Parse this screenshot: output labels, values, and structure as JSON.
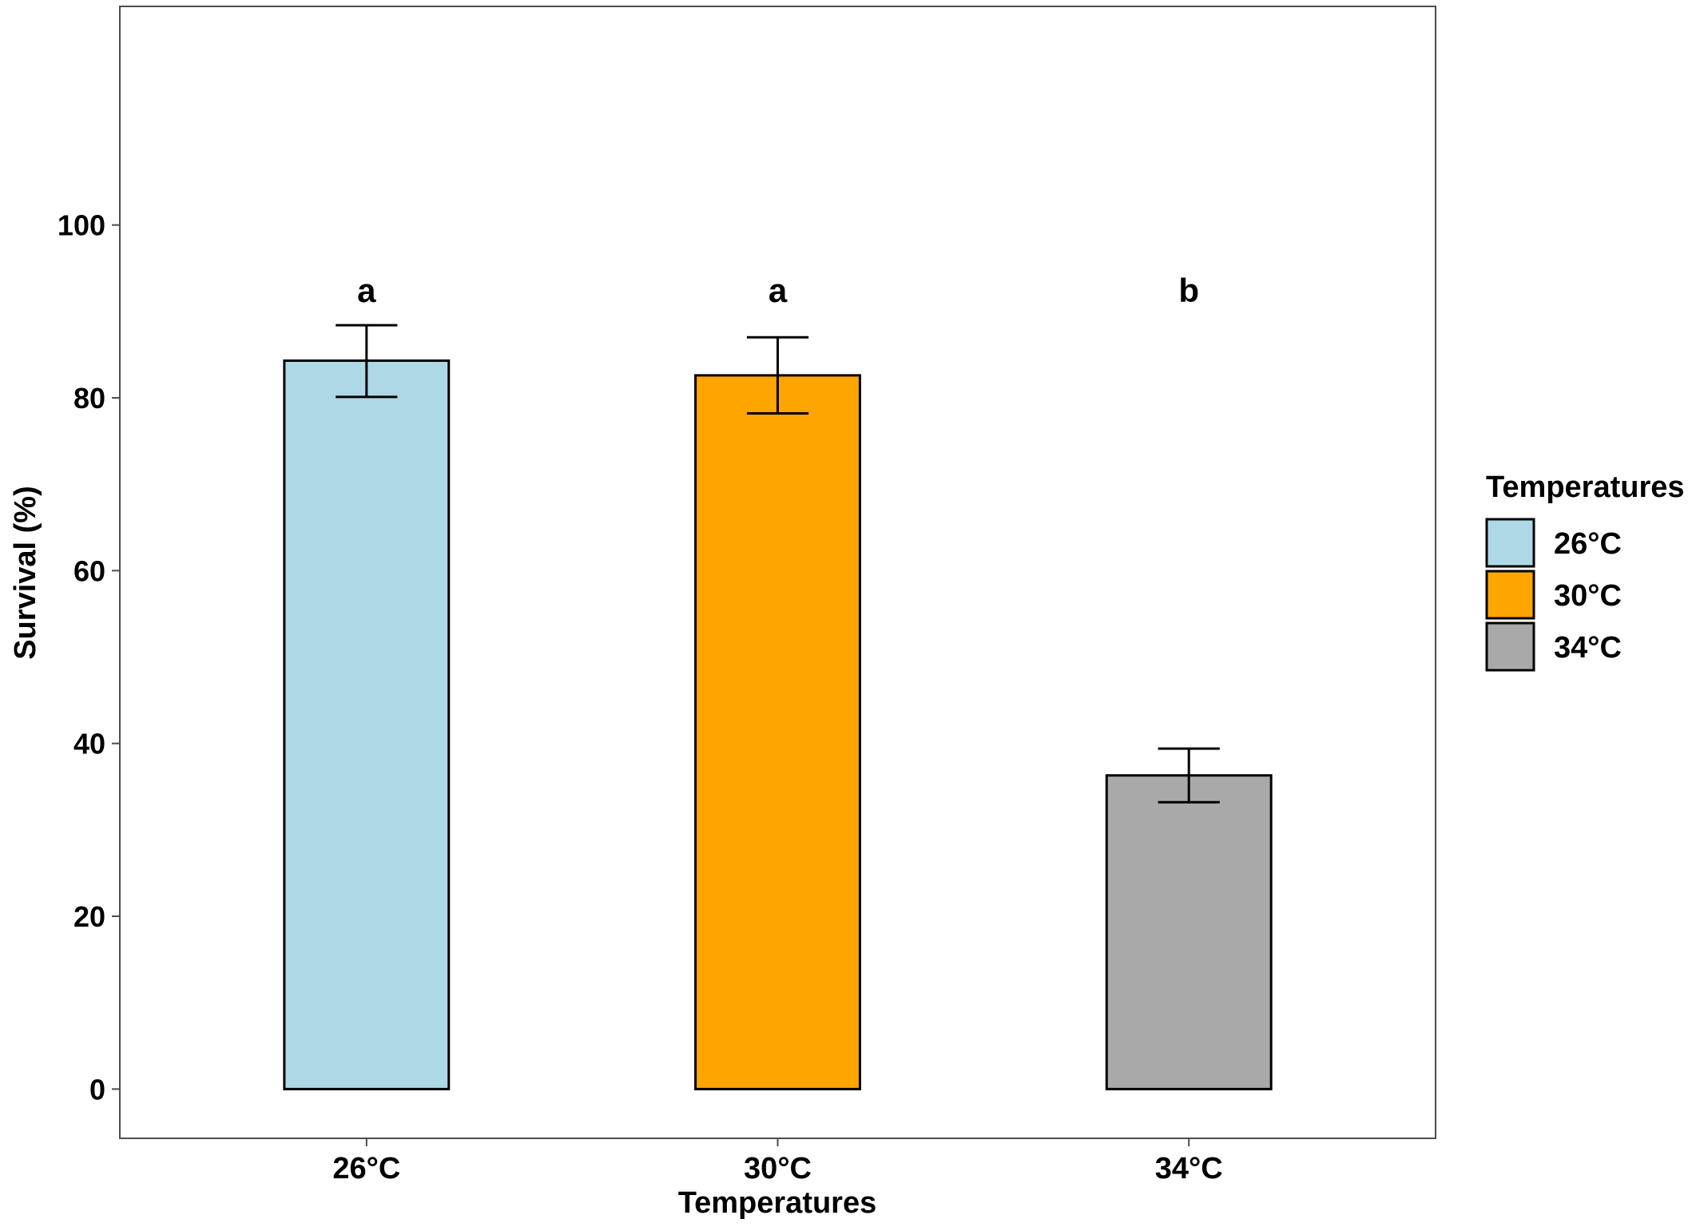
{
  "chart_data": {
    "type": "bar",
    "title": "",
    "xlabel": "Temperatures",
    "ylabel": "Survival (%)",
    "ylim": [
      -5.7,
      125.3
    ],
    "yticks": [
      0,
      20,
      40,
      60,
      80,
      100
    ],
    "categories": [
      "26°C",
      "30°C",
      "34°C"
    ],
    "values": [
      84.3,
      82.6,
      36.3
    ],
    "error_bars": [
      {
        "low": 80.1,
        "high": 88.4
      },
      {
        "low": 78.2,
        "high": 87.0
      },
      {
        "low": 33.2,
        "high": 39.4
      }
    ],
    "significance_letters": [
      "a",
      "a",
      "b"
    ],
    "colors": [
      "#add8e6",
      "#ffa500",
      "#a9a9a9"
    ],
    "grid": false,
    "legend": {
      "title": "Temperatures",
      "placement": "right",
      "items": [
        "26°C",
        "30°C",
        "34°C"
      ]
    }
  }
}
